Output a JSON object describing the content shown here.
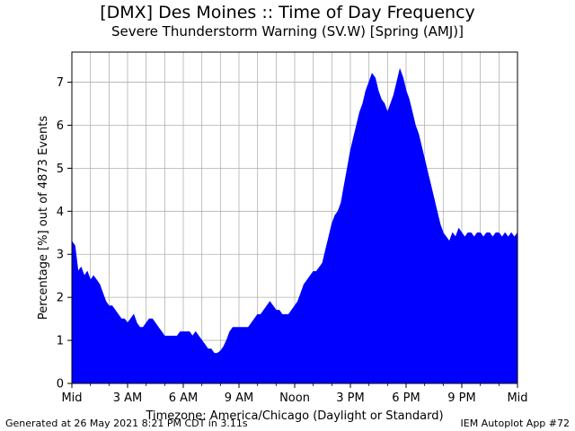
{
  "chart_data": {
    "type": "area",
    "title": "[DMX] Des Moines :: Time of Day Frequency",
    "subtitle": "Severe Thunderstorm Warning (SV.W) [Spring (AMJ)]",
    "xlabel": "Timezone: America/Chicago (Daylight or Standard)",
    "ylabel": "Percentage [%] out of 4873 Events",
    "xlim": [
      0,
      1440
    ],
    "ylim": [
      0,
      7.7
    ],
    "grid": true,
    "color": "#0000ff",
    "x_ticks": [
      {
        "value": 0,
        "label": "Mid"
      },
      {
        "value": 180,
        "label": "3 AM"
      },
      {
        "value": 360,
        "label": "6 AM"
      },
      {
        "value": 540,
        "label": "9 AM"
      },
      {
        "value": 720,
        "label": "Noon"
      },
      {
        "value": 900,
        "label": "3 PM"
      },
      {
        "value": 1080,
        "label": "6 PM"
      },
      {
        "value": 1260,
        "label": "9 PM"
      },
      {
        "value": 1440,
        "label": "Mid"
      }
    ],
    "x_minor_ticks": [
      60,
      120,
      240,
      300,
      420,
      480,
      600,
      660,
      780,
      840,
      960,
      1020,
      1140,
      1200,
      1320,
      1380
    ],
    "y_ticks": [
      0,
      1,
      2,
      3,
      4,
      5,
      6,
      7
    ],
    "series": [
      {
        "x_minutes": [
          0,
          10,
          20,
          30,
          40,
          50,
          60,
          70,
          80,
          90,
          100,
          110,
          120,
          130,
          140,
          150,
          160,
          170,
          180,
          190,
          200,
          210,
          220,
          230,
          240,
          250,
          260,
          270,
          280,
          290,
          300,
          310,
          320,
          330,
          340,
          350,
          360,
          370,
          380,
          390,
          400,
          410,
          420,
          430,
          440,
          450,
          460,
          470,
          480,
          490,
          500,
          510,
          520,
          530,
          540,
          550,
          560,
          570,
          580,
          590,
          600,
          610,
          620,
          630,
          640,
          650,
          660,
          670,
          680,
          690,
          700,
          710,
          720,
          730,
          740,
          750,
          760,
          770,
          780,
          790,
          800,
          810,
          820,
          830,
          840,
          850,
          860,
          870,
          880,
          890,
          900,
          910,
          920,
          930,
          940,
          950,
          960,
          970,
          980,
          990,
          1000,
          1010,
          1020,
          1030,
          1040,
          1050,
          1060,
          1070,
          1080,
          1090,
          1100,
          1110,
          1120,
          1130,
          1140,
          1150,
          1160,
          1170,
          1180,
          1190,
          1200,
          1210,
          1220,
          1230,
          1240,
          1250,
          1260,
          1270,
          1280,
          1290,
          1300,
          1310,
          1320,
          1330,
          1340,
          1350,
          1360,
          1370,
          1380,
          1390,
          1400,
          1410,
          1420,
          1430,
          1440
        ],
        "values": [
          3.3,
          3.2,
          2.6,
          2.7,
          2.5,
          2.6,
          2.4,
          2.5,
          2.4,
          2.3,
          2.1,
          1.9,
          1.8,
          1.8,
          1.7,
          1.6,
          1.5,
          1.5,
          1.4,
          1.5,
          1.6,
          1.4,
          1.3,
          1.3,
          1.4,
          1.5,
          1.5,
          1.4,
          1.3,
          1.2,
          1.1,
          1.1,
          1.1,
          1.1,
          1.1,
          1.2,
          1.2,
          1.2,
          1.2,
          1.1,
          1.2,
          1.1,
          1.0,
          0.9,
          0.8,
          0.8,
          0.7,
          0.7,
          0.75,
          0.85,
          1.0,
          1.2,
          1.3,
          1.3,
          1.3,
          1.3,
          1.3,
          1.3,
          1.4,
          1.5,
          1.6,
          1.6,
          1.7,
          1.8,
          1.9,
          1.8,
          1.7,
          1.7,
          1.6,
          1.6,
          1.6,
          1.7,
          1.8,
          1.9,
          2.1,
          2.3,
          2.4,
          2.5,
          2.6,
          2.6,
          2.7,
          2.8,
          3.1,
          3.4,
          3.7,
          3.9,
          4.0,
          4.2,
          4.6,
          5.0,
          5.4,
          5.7,
          6.0,
          6.3,
          6.5,
          6.8,
          7.0,
          7.2,
          7.1,
          6.8,
          6.6,
          6.5,
          6.3,
          6.5,
          6.7,
          7.0,
          7.3,
          7.1,
          6.8,
          6.6,
          6.3,
          6.0,
          5.8,
          5.5,
          5.2,
          4.9,
          4.6,
          4.3,
          4.0,
          3.7,
          3.5,
          3.4,
          3.3,
          3.5,
          3.4,
          3.6,
          3.5,
          3.4,
          3.5,
          3.5,
          3.4,
          3.5,
          3.5,
          3.4,
          3.5,
          3.5,
          3.4,
          3.5,
          3.5,
          3.4,
          3.5,
          3.4,
          3.5,
          3.4,
          3.5
        ]
      }
    ]
  },
  "footer": {
    "generated": "Generated at 26 May 2021 8:21 PM CDT in 3.11s",
    "app": "IEM Autoplot App #72"
  }
}
